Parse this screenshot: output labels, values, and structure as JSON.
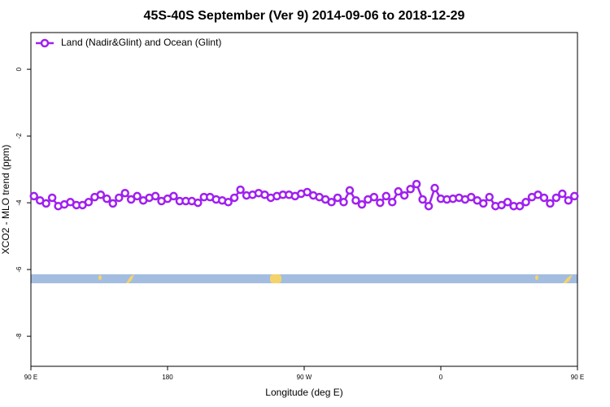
{
  "chart_data": {
    "type": "line",
    "title": "45S-40S September (Ver 9)   2014-09-06 to 2018-12-29",
    "xlabel": "Longitude (deg E)",
    "ylabel": "XCO2 - MLO trend (ppm)",
    "x": [
      92,
      96,
      100,
      104,
      108,
      112,
      116,
      120,
      124,
      128,
      132,
      136,
      140,
      144,
      148,
      152,
      156,
      160,
      164,
      168,
      172,
      176,
      180,
      184,
      188,
      192,
      196,
      200,
      204,
      208,
      212,
      216,
      220,
      224,
      228,
      232,
      236,
      240,
      244,
      248,
      252,
      256,
      260,
      264,
      268,
      272,
      276,
      280,
      284,
      288,
      292,
      296,
      300,
      304,
      308,
      312,
      316,
      320,
      324,
      328,
      332,
      336,
      340,
      344,
      348,
      352,
      356,
      360,
      364,
      368,
      372,
      376,
      380,
      384,
      388,
      392,
      396,
      400,
      404,
      408,
      412,
      416,
      420,
      424,
      428,
      432,
      436,
      440,
      444,
      448
    ],
    "series": [
      {
        "name": "Land (Nadir&Glint) and Ocean (Glint)",
        "color": "#a020f0",
        "values": [
          -3.8,
          -3.93,
          -4.02,
          -3.85,
          -4.1,
          -4.05,
          -3.98,
          -4.07,
          -4.07,
          -3.98,
          -3.83,
          -3.76,
          -3.88,
          -4.02,
          -3.85,
          -3.71,
          -3.9,
          -3.8,
          -3.93,
          -3.85,
          -3.8,
          -3.95,
          -3.88,
          -3.8,
          -3.95,
          -3.95,
          -3.95,
          -4.0,
          -3.83,
          -3.83,
          -3.9,
          -3.93,
          -3.98,
          -3.85,
          -3.61,
          -3.78,
          -3.76,
          -3.71,
          -3.76,
          -3.85,
          -3.8,
          -3.76,
          -3.76,
          -3.8,
          -3.73,
          -3.68,
          -3.78,
          -3.83,
          -3.9,
          -3.98,
          -3.85,
          -3.98,
          -3.63,
          -3.93,
          -4.05,
          -3.9,
          -3.83,
          -4.0,
          -3.8,
          -3.98,
          -3.66,
          -3.78,
          -3.59,
          -3.44,
          -3.9,
          -4.1,
          -3.56,
          -3.88,
          -3.9,
          -3.88,
          -3.85,
          -3.9,
          -3.83,
          -3.93,
          -4.02,
          -3.83,
          -4.1,
          -4.07,
          -3.98,
          -4.1,
          -4.1,
          -3.98,
          -3.83,
          -3.76,
          -3.85,
          -4.02,
          -3.85,
          -3.73,
          -3.93,
          -3.8
        ]
      }
    ],
    "xlim": [
      90,
      450
    ],
    "xticks": [
      {
        "value": 90,
        "label": "90 E"
      },
      {
        "value": 180,
        "label": "180"
      },
      {
        "value": 270,
        "label": "90 W"
      },
      {
        "value": 360,
        "label": "0"
      },
      {
        "value": 450,
        "label": "90 E"
      }
    ],
    "xticks_extra": [],
    "ylim": [
      -8.9,
      1.1
    ],
    "yticks": [
      0,
      -2,
      -4,
      -6,
      -8
    ],
    "legend": "upper left",
    "marker": "circle"
  }
}
